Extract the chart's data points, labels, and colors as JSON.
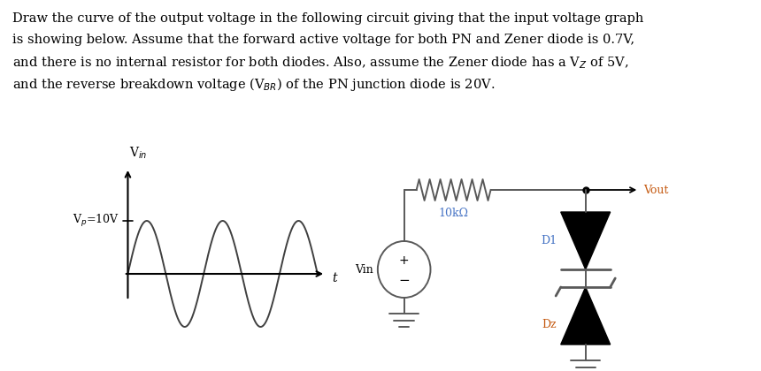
{
  "bg_color": "#ffffff",
  "text_lines": [
    "Draw the curve of the output voltage in the following circuit giving that the input voltage graph",
    "is showing below. Assume that the forward active voltage for both PN and Zener diode is 0.7V,",
    "and there is no internal resistor for both diodes. Also, assume the Zener diode has a V$_Z$ of 5V,",
    "and the reverse breakdown voltage (V$_{BR}$) of the PN junction diode is 20V."
  ],
  "resistor_label": "10kΩ",
  "d1_label": "D1",
  "dz_label": "Dz",
  "vout_label": "Vout",
  "vin_label": "Vin",
  "vp_label": "V$_p$=10V",
  "vin_axis_label": "V$_{in}$",
  "t_label": "t",
  "label_color_blue": "#4472c4",
  "label_color_orange": "#c55a11",
  "line_color": "#595959",
  "diode_color": "#000000",
  "text_fontsize": 10.5,
  "circuit_fontsize": 9.0
}
